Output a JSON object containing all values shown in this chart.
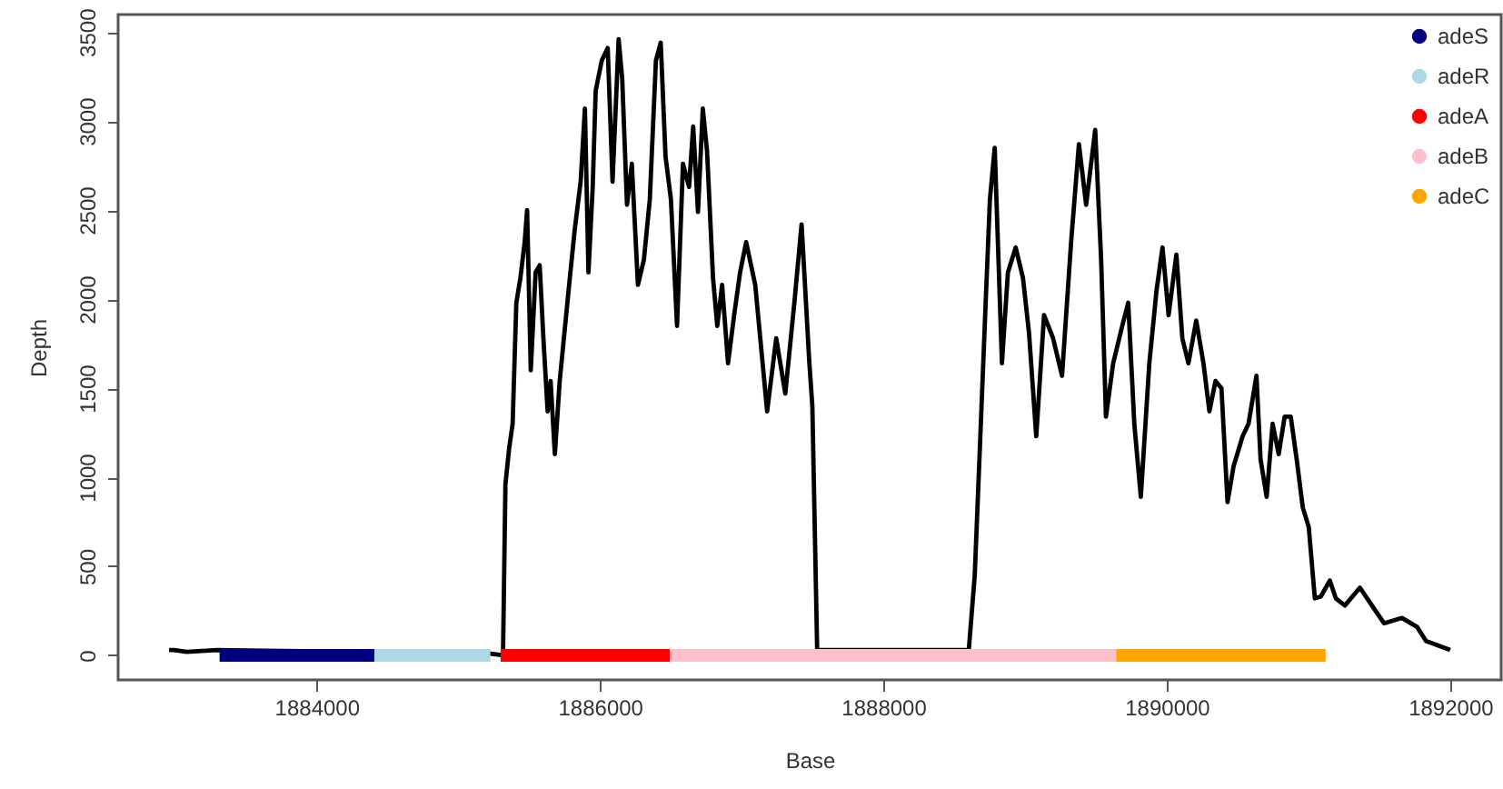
{
  "chart_data": {
    "type": "line",
    "xlabel": "Base",
    "ylabel": "Depth",
    "xlim": [
      1882600,
      1892360
    ],
    "ylim": [
      -138,
      3598
    ],
    "xticks": [
      1884000,
      1886000,
      1888000,
      1890000,
      1892000
    ],
    "yticks": [
      0,
      500,
      1000,
      1500,
      2000,
      2500,
      3000,
      3500
    ],
    "grid": false,
    "legend": "top right",
    "series": [
      {
        "color": "#000000",
        "x": [
          1882960,
          1882994,
          1883083,
          1883300,
          1885227,
          1885316,
          1885333,
          1885359,
          1885384,
          1885410,
          1885439,
          1885469,
          1885486,
          1885512,
          1885546,
          1885575,
          1885601,
          1885631,
          1885652,
          1885682,
          1885716,
          1885779,
          1885822,
          1885864,
          1885894,
          1885919,
          1885949,
          1885970,
          1886013,
          1886055,
          1886089,
          1886132,
          1886157,
          1886191,
          1886225,
          1886268,
          1886310,
          1886352,
          1886395,
          1886429,
          1886463,
          1886501,
          1886544,
          1886586,
          1886629,
          1886658,
          1886692,
          1886726,
          1886756,
          1886798,
          1886828,
          1886862,
          1886904,
          1886947,
          1886989,
          1887032,
          1887096,
          1887180,
          1887244,
          1887308,
          1887372,
          1887423,
          1887478,
          1887499,
          1887533,
          1888603,
          1888645,
          1888688,
          1888722,
          1888752,
          1888786,
          1888837,
          1888879,
          1888934,
          1888985,
          1889028,
          1889079,
          1889134,
          1889198,
          1889261,
          1889325,
          1889380,
          1889431,
          1889495,
          1889537,
          1889571,
          1889622,
          1889686,
          1889728,
          1889771,
          1889817,
          1889877,
          1889928,
          1889970,
          1890013,
          1890068,
          1890110,
          1890153,
          1890208,
          1890259,
          1890301,
          1890344,
          1890386,
          1890429,
          1890471,
          1890535,
          1890577,
          1890633,
          1890662,
          1890705,
          1890747,
          1890790,
          1890832,
          1890875,
          1890917,
          1890960,
          1891002,
          1891045,
          1891087,
          1891151,
          1891193,
          1891257,
          1891363,
          1891448,
          1891533,
          1891660,
          1891766,
          1891830,
          1892000
        ],
        "values": [
          30,
          30,
          20,
          30,
          10,
          0,
          960,
          1160,
          1300,
          1980,
          2120,
          2320,
          2500,
          1600,
          2150,
          2190,
          1780,
          1370,
          1540,
          1130,
          1540,
          2050,
          2390,
          2660,
          3070,
          2150,
          2630,
          3170,
          3340,
          3410,
          2660,
          3460,
          3240,
          2530,
          2760,
          2080,
          2220,
          2560,
          3340,
          3440,
          2800,
          2560,
          1850,
          2760,
          2630,
          2970,
          2490,
          3070,
          2830,
          2120,
          1850,
          2080,
          1640,
          1910,
          2150,
          2320,
          2080,
          1370,
          1780,
          1470,
          1980,
          2420,
          1640,
          1400,
          30,
          30,
          450,
          1300,
          1980,
          2560,
          2850,
          1640,
          2150,
          2290,
          2120,
          1810,
          1230,
          1910,
          1780,
          1570,
          2320,
          2870,
          2530,
          2950,
          2220,
          1340,
          1640,
          1850,
          1980,
          1300,
          890,
          1640,
          2050,
          2290,
          1910,
          2250,
          1780,
          1640,
          1880,
          1640,
          1370,
          1540,
          1500,
          860,
          1060,
          1230,
          1300,
          1570,
          1100,
          890,
          1300,
          1130,
          1340,
          1340,
          1100,
          830,
          720,
          320,
          330,
          420,
          320,
          280,
          380,
          280,
          180,
          210,
          160,
          80,
          30
        ]
      },
      {
        "name": "adeS",
        "color": "#000080",
        "x": [
          1883316,
          1884408
        ],
        "values": [
          0,
          0
        ]
      },
      {
        "name": "adeR",
        "color": "#add8e6",
        "x": [
          1884408,
          1885227
        ],
        "values": [
          0,
          0
        ]
      },
      {
        "name": "adeA",
        "color": "#ff0000",
        "x": [
          1885299,
          1886493
        ],
        "values": [
          0,
          0
        ]
      },
      {
        "name": "adeB",
        "color": "#ffc0cb",
        "x": [
          1886493,
          1889643
        ],
        "values": [
          0,
          0
        ]
      },
      {
        "name": "adeC",
        "color": "#ffa500",
        "x": [
          1889643,
          1891121
        ],
        "values": [
          0,
          0
        ]
      }
    ]
  }
}
